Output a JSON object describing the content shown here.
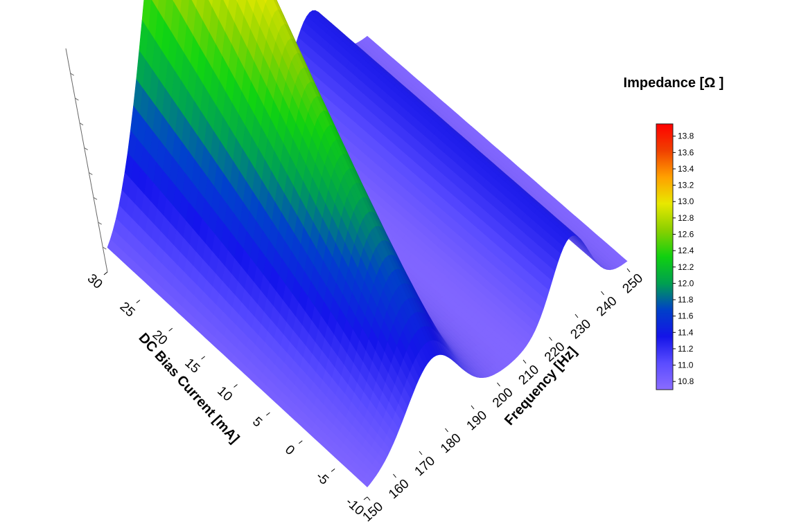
{
  "chart_data": {
    "type": "surface",
    "title": "",
    "colorbar": {
      "title": "Impedance [Ω ]",
      "ticks": [
        10.8,
        11.0,
        11.2,
        11.4,
        11.6,
        11.8,
        12.0,
        12.2,
        12.4,
        12.6,
        12.8,
        13.0,
        13.2,
        13.4,
        13.6,
        13.8
      ],
      "tick_labels": [
        "10.8",
        "11.0",
        "11.2",
        "11.4",
        "11.6",
        "11.8",
        "12.0",
        "12.2",
        "12.4",
        "12.6",
        "12.8",
        "13.0",
        "13.2",
        "13.4",
        "13.6",
        "13.8"
      ],
      "range": [
        10.7,
        13.95
      ],
      "colors": [
        "#8a6cff",
        "#5a4cff",
        "#1414e8",
        "#0040c8",
        "#00a050",
        "#10d010",
        "#8ad000",
        "#e8e800",
        "#ffa000",
        "#f04000",
        "#ff0000"
      ]
    },
    "x_axis": {
      "label": "Frequency [Hz]",
      "range": [
        150,
        250
      ],
      "ticks": [
        150,
        160,
        170,
        180,
        190,
        200,
        210,
        220,
        230,
        240,
        250
      ],
      "tick_labels": [
        "150",
        "160",
        "170",
        "180",
        "190",
        "200",
        "210",
        "220",
        "230",
        "240",
        "250"
      ]
    },
    "y_axis": {
      "label": "DC Bias Current [mA]",
      "range": [
        -10,
        30
      ],
      "ticks": [
        -10,
        -5,
        0,
        5,
        10,
        15,
        20,
        25,
        30
      ],
      "tick_labels": [
        "-10",
        "-5",
        "0",
        "5",
        "10",
        "15",
        "20",
        "25",
        "30"
      ]
    },
    "z_axis": {
      "label": "",
      "range": [
        10.7,
        13.95
      ]
    },
    "surface": {
      "baseline": 10.75,
      "peak1": {
        "center_hz": 175,
        "width_hz": 14,
        "amplitude_at_min_current": 0.55,
        "amplitude_at_max_current": 3.15
      },
      "peak2": {
        "center_hz": 228,
        "width_hz": 10,
        "amplitude": 0.55
      }
    }
  }
}
